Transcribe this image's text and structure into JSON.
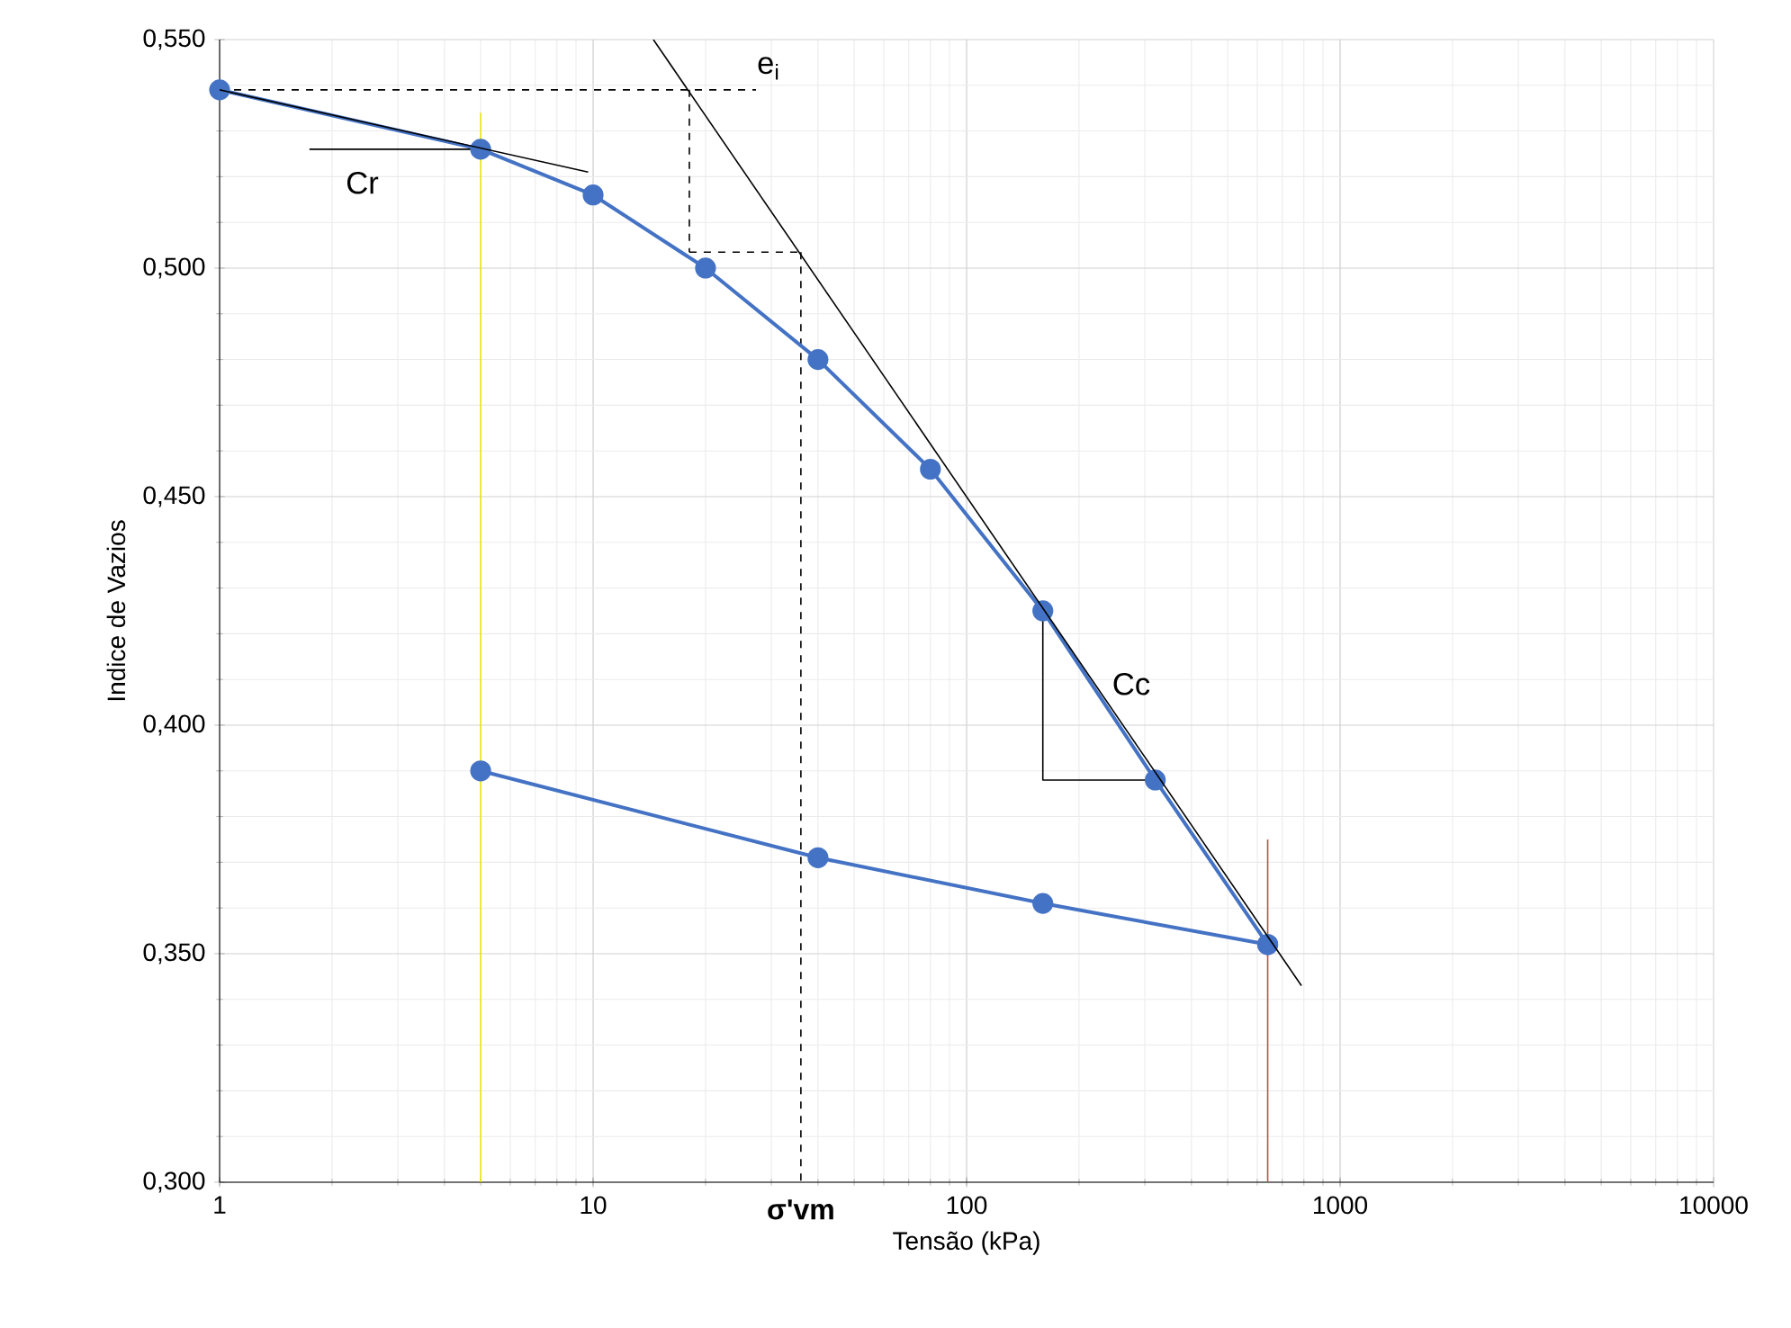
{
  "chart_data": {
    "type": "line",
    "xlabel": "Tensão (kPa)",
    "ylabel": "Indice de Vazios",
    "log": "x",
    "grid": true,
    "xlim": [
      1,
      10000
    ],
    "xticks": [
      1,
      10,
      100,
      1000,
      10000
    ],
    "ylim": [
      0.3,
      0.55
    ],
    "yticks": [
      {
        "value": 0.3,
        "label": "0,300"
      },
      {
        "value": 0.35,
        "label": "0,350"
      },
      {
        "value": 0.4,
        "label": "0,400"
      },
      {
        "value": 0.45,
        "label": "0,450"
      },
      {
        "value": 0.5,
        "label": "0,500"
      },
      {
        "value": 0.55,
        "label": "0,550"
      }
    ],
    "series": [
      {
        "color": "#e8e800",
        "x": [
          5,
          5
        ],
        "values": [
          0.3,
          0.534
        ],
        "marker": "none",
        "line_style": "solid"
      },
      {
        "color": "#c0504d",
        "x": [
          640,
          640
        ],
        "values": [
          0.3,
          0.375
        ],
        "marker": "none",
        "line_style": "solid"
      },
      {
        "color": "#000000",
        "x": [
          1,
          27.3
        ],
        "values": [
          0.539,
          0.539
        ],
        "marker": "none",
        "line_style": "dashed"
      },
      {
        "color": "#000000",
        "x": [
          18.1,
          18.1
        ],
        "values": [
          0.539,
          0.5035
        ],
        "marker": "none",
        "line_style": "dashed"
      },
      {
        "color": "#000000",
        "x": [
          18.1,
          36
        ],
        "values": [
          0.5035,
          0.5035
        ],
        "marker": "none",
        "line_style": "dashed"
      },
      {
        "color": "#000000",
        "x": [
          36,
          36
        ],
        "values": [
          0.5035,
          0.3
        ],
        "marker": "none",
        "line_style": "dashed"
      },
      {
        "color": "#000000",
        "x": [
          1.74,
          5
        ],
        "values": [
          0.526,
          0.526
        ],
        "marker": "none",
        "line_style": "solid"
      },
      {
        "color": "#000000",
        "x": [
          160,
          160,
          320
        ],
        "values": [
          0.425,
          0.388,
          0.388
        ],
        "marker": "none",
        "line_style": "solid"
      },
      {
        "color": "#4472c4",
        "x": [
          1,
          5,
          10,
          20,
          40,
          80,
          160,
          320,
          640
        ],
        "values": [
          0.539,
          0.526,
          0.516,
          0.5,
          0.48,
          0.456,
          0.425,
          0.388,
          0.352
        ],
        "marker": "circle",
        "line_style": "solid"
      },
      {
        "color": "#4472c4",
        "x": [
          640,
          160,
          40,
          5
        ],
        "values": [
          0.352,
          0.361,
          0.371,
          0.39
        ],
        "marker": "circle",
        "line_style": "solid"
      },
      {
        "color": "#000000",
        "x": [
          1,
          9.7
        ],
        "values": [
          0.539,
          0.521
        ],
        "marker": "none",
        "line_style": "solid"
      },
      {
        "color": "#000000",
        "x": [
          14.5,
          788
        ],
        "values": [
          0.55,
          0.343
        ],
        "marker": "none",
        "line_style": "solid"
      }
    ],
    "annotations": [
      {
        "text": "e$_{i}$",
        "x": 18.1,
        "y": 0.539
      },
      {
        "text": "Cr",
        "x": 1.74,
        "y": 0.526
      },
      {
        "text": "Cc",
        "x": 320,
        "y": 0.388
      },
      {
        "text": "σ'vm",
        "x": 36,
        "y": 0.3
      }
    ]
  }
}
